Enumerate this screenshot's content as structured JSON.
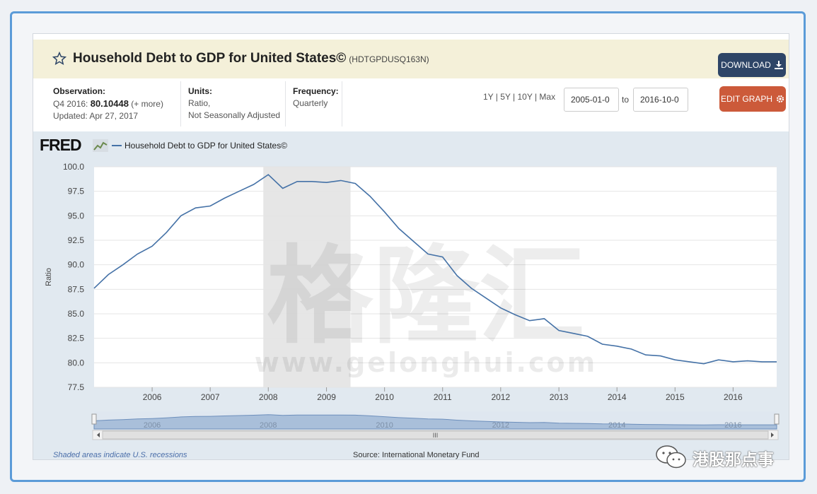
{
  "header": {
    "title": "Household Debt to GDP for United States©",
    "series_id": "(HDTGPDUSQ163N)",
    "download_label": "DOWNLOAD",
    "edit_graph_label": "EDIT GRAPH"
  },
  "observation": {
    "label": "Observation:",
    "period": "Q4 2016:",
    "value": "80.10448",
    "more": "(+ more)",
    "updated": "Updated: Apr 27, 2017"
  },
  "units": {
    "label": "Units:",
    "line1": "Ratio,",
    "line2": "Not Seasonally Adjusted"
  },
  "frequency": {
    "label": "Frequency:",
    "value": "Quarterly"
  },
  "range": {
    "links": "1Y | 5Y | 10Y | Max",
    "start": "2005-01-0",
    "to_label": "to",
    "end": "2016-10-0"
  },
  "brand": {
    "logo": "FRED"
  },
  "chart_data": {
    "type": "line",
    "ylabel": "Ratio",
    "ylim": [
      77.5,
      100.0
    ],
    "yticks": [
      "100.0",
      "97.5",
      "95.0",
      "92.5",
      "90.0",
      "87.5",
      "85.0",
      "82.5",
      "80.0",
      "77.5"
    ],
    "xticks": [
      "2006",
      "2007",
      "2008",
      "2009",
      "2010",
      "2011",
      "2012",
      "2013",
      "2014",
      "2015",
      "2016"
    ],
    "recession": {
      "start": "2007-12-01",
      "end": "2009-06-01"
    },
    "series": [
      {
        "name": "Household Debt to GDP for United States©",
        "color": "#4572a7",
        "x": [
          "2005-01-01",
          "2005-04-01",
          "2005-07-01",
          "2005-10-01",
          "2006-01-01",
          "2006-04-01",
          "2006-07-01",
          "2006-10-01",
          "2007-01-01",
          "2007-04-01",
          "2007-07-01",
          "2007-10-01",
          "2008-01-01",
          "2008-04-01",
          "2008-07-01",
          "2008-10-01",
          "2009-01-01",
          "2009-04-01",
          "2009-07-01",
          "2009-10-01",
          "2010-01-01",
          "2010-04-01",
          "2010-07-01",
          "2010-10-01",
          "2011-01-01",
          "2011-04-01",
          "2011-07-01",
          "2011-10-01",
          "2012-01-01",
          "2012-04-01",
          "2012-07-01",
          "2012-10-01",
          "2013-01-01",
          "2013-04-01",
          "2013-07-01",
          "2013-10-01",
          "2014-01-01",
          "2014-04-01",
          "2014-07-01",
          "2014-10-01",
          "2015-01-01",
          "2015-04-01",
          "2015-07-01",
          "2015-10-01",
          "2016-01-01",
          "2016-04-01",
          "2016-07-01",
          "2016-10-01"
        ],
        "values": [
          87.6,
          89.0,
          90.0,
          91.1,
          91.9,
          93.3,
          95.0,
          95.8,
          96.0,
          96.8,
          97.5,
          98.2,
          99.2,
          97.8,
          98.5,
          98.5,
          98.4,
          98.6,
          98.3,
          97.0,
          95.4,
          93.7,
          92.4,
          91.1,
          90.8,
          88.9,
          87.6,
          86.6,
          85.6,
          84.9,
          84.3,
          84.5,
          83.3,
          83.0,
          82.7,
          81.9,
          81.7,
          81.4,
          80.8,
          80.7,
          80.3,
          80.1,
          79.9,
          80.3,
          80.1,
          80.2,
          80.1,
          80.1
        ]
      }
    ],
    "navigator_labels": [
      "2006",
      "2008",
      "2010",
      "2012",
      "2014",
      "2016"
    ],
    "navigator_handle": "III"
  },
  "footer": {
    "recession_note": "Shaded areas indicate U.S. recessions",
    "source": "Source: International Monetary Fund"
  },
  "watermark": {
    "chinese": "格隆汇",
    "url": "www.gelonghui.com",
    "account": "港股那点事"
  }
}
